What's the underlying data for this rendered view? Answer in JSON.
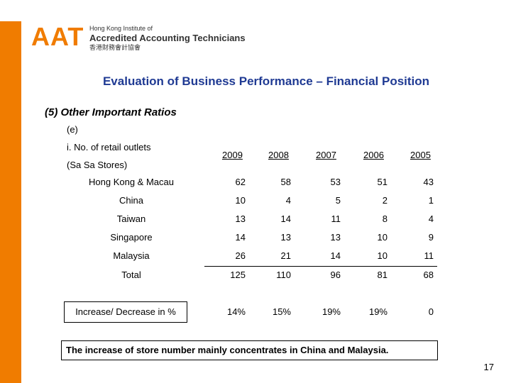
{
  "logo": {
    "mark": "AAT",
    "line1": "Hong Kong Institute of",
    "line2": "Accredited Accounting Technicians",
    "line3": "香港財務會計協會"
  },
  "title": "Evaluation of Business Performance – Financial Position",
  "subtitle": "(5) Other Important Ratios",
  "section": "(e)",
  "question_line1": "i. No. of retail outlets",
  "question_line2": "(Sa Sa Stores)",
  "years": [
    "2009",
    "2008",
    "2007",
    "2006",
    "2005"
  ],
  "rows": [
    {
      "label": "Hong Kong & Macau",
      "values": [
        "62",
        "58",
        "53",
        "51",
        "43"
      ]
    },
    {
      "label": "China",
      "values": [
        "10",
        "4",
        "5",
        "2",
        "1"
      ]
    },
    {
      "label": "Taiwan",
      "values": [
        "13",
        "14",
        "11",
        "8",
        "4"
      ]
    },
    {
      "label": "Singapore",
      "values": [
        "14",
        "13",
        "13",
        "10",
        "9"
      ]
    },
    {
      "label": "Malaysia",
      "values": [
        "26",
        "21",
        "14",
        "10",
        "11"
      ]
    },
    {
      "label": "Total",
      "values": [
        "125",
        "110",
        "96",
        "81",
        "68"
      ]
    },
    {
      "label": "Increase/ Decrease in %",
      "values": [
        "14%",
        "15%",
        "19%",
        "19%",
        "0"
      ]
    }
  ],
  "note": "The increase of store number mainly concentrates in China and Malaysia.",
  "page_number": "17",
  "colors": {
    "accent": "#f07c00",
    "title": "#1f3a93"
  }
}
